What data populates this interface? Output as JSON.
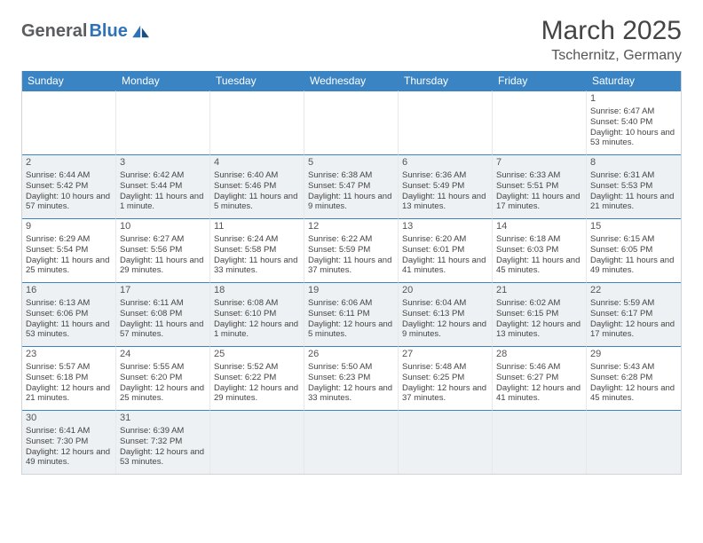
{
  "logo": {
    "dark": "General",
    "blue": "Blue"
  },
  "title": {
    "month": "March 2025",
    "location": "Tschernitz, Germany"
  },
  "colors": {
    "header_bg": "#3a84c4",
    "header_text": "#ffffff",
    "cell_border_top": "#3a84c4",
    "cell_border_side": "#e6e8ea",
    "alt_bg": "#eef1f3",
    "text": "#444444"
  },
  "weekdays": [
    "Sunday",
    "Monday",
    "Tuesday",
    "Wednesday",
    "Thursday",
    "Friday",
    "Saturday"
  ],
  "grid": {
    "first_weekday": 6,
    "days": [
      {
        "n": 1,
        "sr": "6:47 AM",
        "ss": "5:40 PM",
        "dl": "10 hours and 53 minutes."
      },
      {
        "n": 2,
        "sr": "6:44 AM",
        "ss": "5:42 PM",
        "dl": "10 hours and 57 minutes."
      },
      {
        "n": 3,
        "sr": "6:42 AM",
        "ss": "5:44 PM",
        "dl": "11 hours and 1 minute."
      },
      {
        "n": 4,
        "sr": "6:40 AM",
        "ss": "5:46 PM",
        "dl": "11 hours and 5 minutes."
      },
      {
        "n": 5,
        "sr": "6:38 AM",
        "ss": "5:47 PM",
        "dl": "11 hours and 9 minutes."
      },
      {
        "n": 6,
        "sr": "6:36 AM",
        "ss": "5:49 PM",
        "dl": "11 hours and 13 minutes."
      },
      {
        "n": 7,
        "sr": "6:33 AM",
        "ss": "5:51 PM",
        "dl": "11 hours and 17 minutes."
      },
      {
        "n": 8,
        "sr": "6:31 AM",
        "ss": "5:53 PM",
        "dl": "11 hours and 21 minutes."
      },
      {
        "n": 9,
        "sr": "6:29 AM",
        "ss": "5:54 PM",
        "dl": "11 hours and 25 minutes."
      },
      {
        "n": 10,
        "sr": "6:27 AM",
        "ss": "5:56 PM",
        "dl": "11 hours and 29 minutes."
      },
      {
        "n": 11,
        "sr": "6:24 AM",
        "ss": "5:58 PM",
        "dl": "11 hours and 33 minutes."
      },
      {
        "n": 12,
        "sr": "6:22 AM",
        "ss": "5:59 PM",
        "dl": "11 hours and 37 minutes."
      },
      {
        "n": 13,
        "sr": "6:20 AM",
        "ss": "6:01 PM",
        "dl": "11 hours and 41 minutes."
      },
      {
        "n": 14,
        "sr": "6:18 AM",
        "ss": "6:03 PM",
        "dl": "11 hours and 45 minutes."
      },
      {
        "n": 15,
        "sr": "6:15 AM",
        "ss": "6:05 PM",
        "dl": "11 hours and 49 minutes."
      },
      {
        "n": 16,
        "sr": "6:13 AM",
        "ss": "6:06 PM",
        "dl": "11 hours and 53 minutes."
      },
      {
        "n": 17,
        "sr": "6:11 AM",
        "ss": "6:08 PM",
        "dl": "11 hours and 57 minutes."
      },
      {
        "n": 18,
        "sr": "6:08 AM",
        "ss": "6:10 PM",
        "dl": "12 hours and 1 minute."
      },
      {
        "n": 19,
        "sr": "6:06 AM",
        "ss": "6:11 PM",
        "dl": "12 hours and 5 minutes."
      },
      {
        "n": 20,
        "sr": "6:04 AM",
        "ss": "6:13 PM",
        "dl": "12 hours and 9 minutes."
      },
      {
        "n": 21,
        "sr": "6:02 AM",
        "ss": "6:15 PM",
        "dl": "12 hours and 13 minutes."
      },
      {
        "n": 22,
        "sr": "5:59 AM",
        "ss": "6:17 PM",
        "dl": "12 hours and 17 minutes."
      },
      {
        "n": 23,
        "sr": "5:57 AM",
        "ss": "6:18 PM",
        "dl": "12 hours and 21 minutes."
      },
      {
        "n": 24,
        "sr": "5:55 AM",
        "ss": "6:20 PM",
        "dl": "12 hours and 25 minutes."
      },
      {
        "n": 25,
        "sr": "5:52 AM",
        "ss": "6:22 PM",
        "dl": "12 hours and 29 minutes."
      },
      {
        "n": 26,
        "sr": "5:50 AM",
        "ss": "6:23 PM",
        "dl": "12 hours and 33 minutes."
      },
      {
        "n": 27,
        "sr": "5:48 AM",
        "ss": "6:25 PM",
        "dl": "12 hours and 37 minutes."
      },
      {
        "n": 28,
        "sr": "5:46 AM",
        "ss": "6:27 PM",
        "dl": "12 hours and 41 minutes."
      },
      {
        "n": 29,
        "sr": "5:43 AM",
        "ss": "6:28 PM",
        "dl": "12 hours and 45 minutes."
      },
      {
        "n": 30,
        "sr": "6:41 AM",
        "ss": "7:30 PM",
        "dl": "12 hours and 49 minutes."
      },
      {
        "n": 31,
        "sr": "6:39 AM",
        "ss": "7:32 PM",
        "dl": "12 hours and 53 minutes."
      }
    ]
  },
  "labels": {
    "sunrise": "Sunrise:",
    "sunset": "Sunset:",
    "daylight": "Daylight:"
  }
}
